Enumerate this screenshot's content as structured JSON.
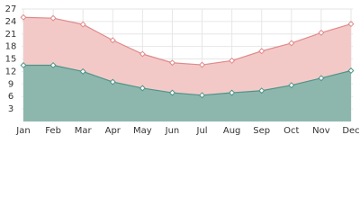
{
  "chart_data": {
    "type": "area",
    "categories": [
      "Jan",
      "Feb",
      "Mar",
      "Apr",
      "May",
      "Jun",
      "Jul",
      "Aug",
      "Sep",
      "Oct",
      "Nov",
      "Dec"
    ],
    "series": [
      {
        "color": "#e08a8a",
        "fill": "#f3c9c8",
        "values": [
          25,
          24.8,
          23.3,
          19.5,
          16.2,
          14.1,
          13.6,
          14.6,
          16.9,
          18.8,
          21.3,
          23.4
        ]
      },
      {
        "color": "#4e9488",
        "fill": "#8db7ad",
        "values": [
          13.5,
          13.5,
          12,
          9.5,
          8,
          6.9,
          6.3,
          6.9,
          7.4,
          8.7,
          10.4,
          12.2
        ]
      }
    ],
    "ylim": [
      0,
      27
    ],
    "yticks": [
      3,
      6,
      9,
      12,
      15,
      18,
      21,
      24,
      27
    ],
    "grid": true
  }
}
